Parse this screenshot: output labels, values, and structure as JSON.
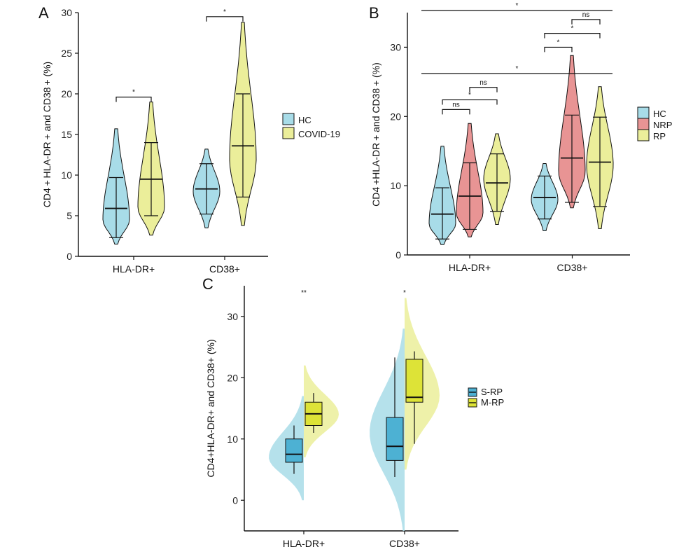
{
  "figure": {
    "panels": [
      {
        "letter": "A",
        "ylabel": "CD4 + HLA-DR + and CD38 + (%)"
      },
      {
        "letter": "B",
        "ylabel": "CD4 +HLA-DR + and CD38 + (%)"
      },
      {
        "letter": "C",
        "ylabel": "CD4+HLA-DR+ and CD38+ (%)"
      }
    ]
  },
  "chart_data": [
    {
      "panel": "A",
      "type": "violin",
      "title": "",
      "xlabel": "",
      "ylabel": "CD4 + HLA-DR + and CD38 + (%)",
      "categories": [
        "HLA-DR+",
        "CD38+"
      ],
      "ylim": [
        0,
        30
      ],
      "yticks": [
        0,
        5,
        10,
        15,
        20,
        25,
        30
      ],
      "legend": "right",
      "series": [
        {
          "name": "HC",
          "color": "#a8dce8",
          "values": [
            {
              "min": 1.5,
              "max": 15.7,
              "median": 5.9,
              "q_low": 2.3,
              "q_high": 9.7,
              "mode": 4.5
            },
            {
              "min": 3.5,
              "max": 13.2,
              "median": 8.3,
              "q_low": 5.2,
              "q_high": 11.4,
              "mode": 8.0
            }
          ]
        },
        {
          "name": "COVID-19",
          "color": "#ebee9a",
          "values": [
            {
              "min": 2.6,
              "max": 19.0,
              "median": 9.5,
              "q_low": 5.0,
              "q_high": 14.0,
              "mode": 6.0
            },
            {
              "min": 3.8,
              "max": 28.8,
              "median": 13.6,
              "q_low": 7.3,
              "q_high": 20.0,
              "mode": 12.0
            }
          ]
        }
      ],
      "annotations": [
        {
          "label": "*",
          "category": "HLA-DR+",
          "y": 19.6
        },
        {
          "label": "*",
          "category": "CD38+",
          "y": 29.5
        }
      ]
    },
    {
      "panel": "B",
      "type": "violin",
      "title": "",
      "xlabel": "",
      "ylabel": "CD4 +HLA-DR + and CD38 + (%)",
      "categories": [
        "HLA-DR+",
        "CD38+"
      ],
      "ylim": [
        0,
        35
      ],
      "yticks": [
        0,
        10,
        20,
        30
      ],
      "legend": "right",
      "series": [
        {
          "name": "HC",
          "color": "#a8dce8",
          "values": [
            {
              "min": 1.5,
              "max": 15.7,
              "median": 5.9,
              "q_low": 2.3,
              "q_high": 9.7,
              "mode": 4.5
            },
            {
              "min": 3.5,
              "max": 13.2,
              "median": 8.3,
              "q_low": 5.2,
              "q_high": 11.4,
              "mode": 8.0
            }
          ]
        },
        {
          "name": "NRP",
          "color": "#e89494",
          "values": [
            {
              "min": 2.6,
              "max": 19.0,
              "median": 8.5,
              "q_low": 3.7,
              "q_high": 13.3,
              "mode": 6.0
            },
            {
              "min": 6.8,
              "max": 28.8,
              "median": 14.0,
              "q_low": 7.6,
              "q_high": 20.2,
              "mode": 12.0
            }
          ]
        },
        {
          "name": "RP",
          "color": "#ebee9a",
          "values": [
            {
              "min": 4.4,
              "max": 17.5,
              "median": 10.4,
              "q_low": 6.3,
              "q_high": 14.6,
              "mode": 11.0
            },
            {
              "min": 3.8,
              "max": 24.3,
              "median": 13.4,
              "q_low": 7.0,
              "q_high": 19.9,
              "mode": 13.0
            }
          ]
        }
      ],
      "annotations": [
        {
          "label": "ns",
          "category": "HLA-DR+",
          "groups": [
            "HC",
            "NRP"
          ],
          "y": 21.0
        },
        {
          "label": "*",
          "category": "HLA-DR+",
          "groups": [
            "HC",
            "RP"
          ],
          "y": 22.4
        },
        {
          "label": "ns",
          "category": "HLA-DR+",
          "groups": [
            "NRP",
            "RP"
          ],
          "y": 24.2
        },
        {
          "label": "*",
          "category": "across",
          "groups": [
            "HC",
            "RP"
          ],
          "y": 26.2
        },
        {
          "label": "*",
          "category": "CD38+",
          "groups": [
            "HC",
            "NRP"
          ],
          "y": 30.0
        },
        {
          "label": "*",
          "category": "CD38+",
          "groups": [
            "HC",
            "RP"
          ],
          "y": 32.0
        },
        {
          "label": "ns",
          "category": "CD38+",
          "groups": [
            "NRP",
            "RP"
          ],
          "y": 34.0
        },
        {
          "label": "*",
          "category": "across",
          "groups": [
            "HC",
            "RP"
          ],
          "y": 35.3
        }
      ]
    },
    {
      "panel": "C",
      "type": "raincloud",
      "title": "",
      "xlabel": "",
      "ylabel": "CD4+HLA-DR+ and CD38+ (%)",
      "categories": [
        "HLA-DR+",
        "CD38+"
      ],
      "ylim": [
        -5,
        35
      ],
      "yticks": [
        0,
        10,
        20,
        30
      ],
      "legend": "right",
      "series": [
        {
          "name": "S-RP",
          "color": "#4db1d3",
          "density_color": "#a8dce8",
          "boxes": [
            {
              "whisker_low": 4.3,
              "q1": 6.2,
              "median": 7.5,
              "q3": 10.0,
              "whisker_high": 12.2
            },
            {
              "whisker_low": 3.8,
              "q1": 6.5,
              "median": 8.8,
              "q3": 13.5,
              "whisker_high": 23.3
            }
          ],
          "densities": [
            {
              "min": 0.0,
              "max": 17.0,
              "mode": 7.0
            },
            {
              "min": -5.0,
              "max": 28.0,
              "mode": 11.0
            }
          ]
        },
        {
          "name": "M-RP",
          "color": "#dde337",
          "density_color": "#ebee9a",
          "boxes": [
            {
              "whisker_low": 11.0,
              "q1": 12.2,
              "median": 14.1,
              "q3": 16.0,
              "whisker_high": 17.5
            },
            {
              "whisker_low": 9.2,
              "q1": 16.0,
              "median": 16.8,
              "q3": 23.0,
              "whisker_high": 24.3
            }
          ],
          "densities": [
            {
              "min": 7.0,
              "max": 22.0,
              "mode": 14.0
            },
            {
              "min": 5.0,
              "max": 33.0,
              "mode": 17.0
            }
          ]
        }
      ],
      "annotations": [
        {
          "label": "**",
          "category": "HLA-DR+",
          "y": 34.0
        },
        {
          "label": "*",
          "category": "CD38+",
          "y": 34.0
        }
      ]
    }
  ]
}
